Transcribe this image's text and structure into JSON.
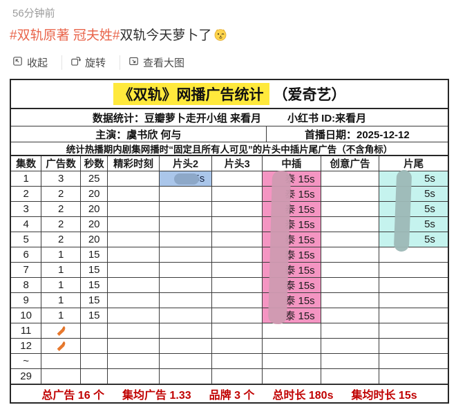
{
  "post": {
    "time": "56分钟前",
    "hashtag": "#双轨原著 冠夫姓#",
    "title_rest": "双轨今天萝卜了",
    "emoji": "doge",
    "toolbar": [
      {
        "label": "收起",
        "icon": "collapse-icon"
      },
      {
        "label": "旋转",
        "icon": "rotate-icon"
      },
      {
        "label": "查看大图",
        "icon": "view-large-icon"
      }
    ]
  },
  "table": {
    "title": "《双轨》网播广告统计",
    "title_suffix": "（爱奇艺）",
    "stats_label": "数据统计：豆瓣萝卜走开小组 来看月",
    "xhs_id": "小红书 ID:来看月",
    "cast": "主演：虞书欣 何与",
    "premiere": "首播日期：2025-12-12",
    "note": "统计热播期内剧集网播时“固定且所有人可见”的片头中插片尾广告（不含角标）",
    "headers": [
      "集数",
      "广告数",
      "秒数",
      "精彩时刻",
      "片头2",
      "片头3",
      "中插",
      "创意广告",
      "片尾"
    ],
    "rows": [
      {
        "ep": "1",
        "ads": "3",
        "sec": "25",
        "moment": "",
        "pt2": "5s",
        "pt3": "",
        "mid": "泰 15s",
        "creative": "",
        "end": "5s"
      },
      {
        "ep": "2",
        "ads": "2",
        "sec": "20",
        "moment": "",
        "pt2": "",
        "pt3": "",
        "mid": "泰 15s",
        "creative": "",
        "end": "5s"
      },
      {
        "ep": "3",
        "ads": "2",
        "sec": "20",
        "moment": "",
        "pt2": "",
        "pt3": "",
        "mid": "泰 15s",
        "creative": "",
        "end": "5s"
      },
      {
        "ep": "4",
        "ads": "2",
        "sec": "20",
        "moment": "",
        "pt2": "",
        "pt3": "",
        "mid": "泰 15s",
        "creative": "",
        "end": "5s"
      },
      {
        "ep": "5",
        "ads": "2",
        "sec": "20",
        "moment": "",
        "pt2": "",
        "pt3": "",
        "mid": "泰 15s",
        "creative": "",
        "end": "5s"
      },
      {
        "ep": "6",
        "ads": "1",
        "sec": "15",
        "moment": "",
        "pt2": "",
        "pt3": "",
        "mid": "泰 15s",
        "creative": "",
        "end": ""
      },
      {
        "ep": "7",
        "ads": "1",
        "sec": "15",
        "moment": "",
        "pt2": "",
        "pt3": "",
        "mid": "泰 15s",
        "creative": "",
        "end": ""
      },
      {
        "ep": "8",
        "ads": "1",
        "sec": "15",
        "moment": "",
        "pt2": "",
        "pt3": "",
        "mid": "泰 15s",
        "creative": "",
        "end": ""
      },
      {
        "ep": "9",
        "ads": "1",
        "sec": "15",
        "moment": "",
        "pt2": "",
        "pt3": "",
        "mid": "泰 15s",
        "creative": "",
        "end": ""
      },
      {
        "ep": "10",
        "ads": "1",
        "sec": "15",
        "moment": "",
        "pt2": "",
        "pt3": "",
        "mid": "泰 15s",
        "creative": "",
        "end": ""
      },
      {
        "ep": "11",
        "ads": "🥕",
        "sec": "",
        "moment": "",
        "pt2": "",
        "pt3": "",
        "mid": "",
        "creative": "",
        "end": ""
      },
      {
        "ep": "12",
        "ads": "🥕",
        "sec": "",
        "moment": "",
        "pt2": "",
        "pt3": "",
        "mid": "",
        "creative": "",
        "end": ""
      },
      {
        "ep": "~",
        "ads": "",
        "sec": "",
        "moment": "",
        "pt2": "",
        "pt3": "",
        "mid": "",
        "creative": "",
        "end": ""
      },
      {
        "ep": "29",
        "ads": "",
        "sec": "",
        "moment": "",
        "pt2": "",
        "pt3": "",
        "mid": "",
        "creative": "",
        "end": ""
      }
    ],
    "summary": [
      "总广告 16 个",
      "集均广告 1.33",
      "品牌 3 个",
      "总时长 180s",
      "集均时长 15s"
    ]
  },
  "colors": {
    "highlight": "#ffe93c",
    "pink": "#f495c2",
    "blue": "#aac6ea",
    "cyan": "#c5f3ee",
    "summary_red": "#c00000",
    "band_pink": "#cf9ab1",
    "band_cyan": "#9db8b6",
    "blob_blue": "#8da8c8",
    "hashtag_orange": "#e9654b"
  }
}
